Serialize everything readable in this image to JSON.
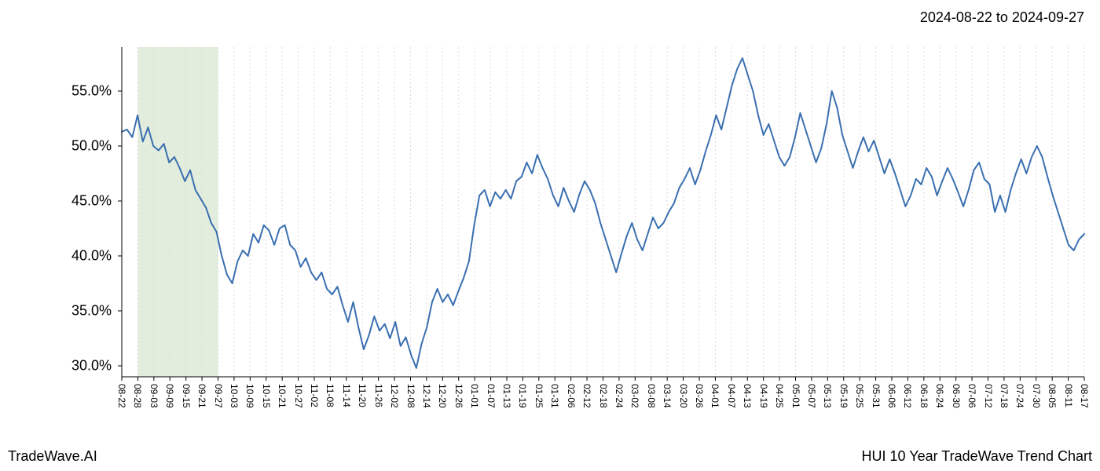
{
  "header": {
    "date_range": "2024-08-22 to 2024-09-27"
  },
  "footer": {
    "left": "TradeWave.AI",
    "right": "HUI 10 Year TradeWave Trend Chart"
  },
  "chart": {
    "type": "line",
    "background_color": "#ffffff",
    "line_color": "#3a6fb0",
    "line_width": 2,
    "highlight_band": {
      "start_index": 1,
      "end_index": 6,
      "fill_color": "#d6e5cf",
      "fill_opacity": 0.7
    },
    "grid": {
      "vertical_color": "#dcdcdc",
      "vertical_dash": "2,3",
      "horizontal_color": "#dcdcdc",
      "horizontal_dash": "none"
    },
    "y_axis": {
      "min": 29,
      "max": 59,
      "ticks": [
        30,
        35,
        40,
        45,
        50,
        55
      ],
      "tick_labels": [
        "30.0%",
        "35.0%",
        "40.0%",
        "45.0%",
        "50.0%",
        "55.0%"
      ],
      "label_fontsize": 18,
      "label_color": "#000000"
    },
    "x_axis": {
      "labels": [
        "08-22",
        "08-28",
        "09-03",
        "09-09",
        "09-15",
        "09-21",
        "09-27",
        "10-03",
        "10-09",
        "10-15",
        "10-21",
        "10-27",
        "11-02",
        "11-08",
        "11-14",
        "11-20",
        "11-26",
        "12-02",
        "12-08",
        "12-14",
        "12-20",
        "12-26",
        "01-01",
        "01-07",
        "01-13",
        "01-19",
        "01-25",
        "01-31",
        "02-06",
        "02-12",
        "02-18",
        "02-24",
        "03-02",
        "03-08",
        "03-14",
        "03-20",
        "03-26",
        "04-01",
        "04-07",
        "04-13",
        "04-19",
        "04-25",
        "05-01",
        "05-07",
        "05-13",
        "05-19",
        "05-25",
        "05-31",
        "06-06",
        "06-12",
        "06-18",
        "06-24",
        "06-30",
        "07-06",
        "07-12",
        "07-18",
        "07-24",
        "07-30",
        "08-05",
        "08-11",
        "08-17"
      ],
      "label_fontsize": 12,
      "label_color": "#000000",
      "label_rotation": 90
    },
    "series": {
      "values": [
        51.3,
        51.5,
        50.8,
        52.8,
        50.4,
        51.7,
        50.0,
        49.6,
        50.2,
        48.5,
        49.0,
        48.0,
        46.8,
        47.8,
        46.0,
        45.2,
        44.4,
        43.0,
        42.2,
        40.0,
        38.3,
        37.5,
        39.5,
        40.5,
        40.0,
        42.0,
        41.2,
        42.8,
        42.3,
        41.0,
        42.5,
        42.8,
        41.0,
        40.5,
        39.0,
        39.8,
        38.5,
        37.8,
        38.5,
        37.0,
        36.5,
        37.2,
        35.5,
        34.0,
        35.8,
        33.5,
        31.5,
        32.8,
        34.5,
        33.2,
        33.8,
        32.5,
        34.0,
        31.8,
        32.6,
        31.0,
        29.8,
        32.0,
        33.5,
        35.8,
        37.0,
        35.8,
        36.5,
        35.5,
        36.8,
        38.0,
        39.5,
        42.8,
        45.5,
        46.0,
        44.5,
        45.8,
        45.2,
        46.0,
        45.2,
        46.8,
        47.2,
        48.5,
        47.5,
        49.2,
        48.0,
        47.0,
        45.5,
        44.5,
        46.2,
        45.0,
        44.0,
        45.6,
        46.8,
        46.0,
        44.8,
        43.0,
        41.5,
        40.0,
        38.5,
        40.2,
        41.8,
        43.0,
        41.5,
        40.5,
        42.0,
        43.5,
        42.5,
        43.0,
        44.0,
        44.8,
        46.2,
        47.0,
        48.0,
        46.5,
        47.8,
        49.5,
        51.0,
        52.8,
        51.5,
        53.5,
        55.5,
        57.0,
        58.0,
        56.5,
        55.0,
        52.8,
        51.0,
        52.0,
        50.5,
        49.0,
        48.2,
        49.0,
        50.8,
        53.0,
        51.5,
        50.0,
        48.5,
        49.8,
        52.0,
        55.0,
        53.5,
        51.0,
        49.5,
        48.0,
        49.5,
        50.8,
        49.5,
        50.5,
        49.0,
        47.5,
        48.8,
        47.5,
        46.0,
        44.5,
        45.5,
        47.0,
        46.5,
        48.0,
        47.2,
        45.5,
        46.8,
        48.0,
        47.0,
        45.8,
        44.5,
        46.0,
        47.8,
        48.5,
        47.0,
        46.5,
        44.0,
        45.5,
        44.0,
        46.0,
        47.5,
        48.8,
        47.5,
        49.0,
        50.0,
        49.0,
        47.2,
        45.5,
        44.0,
        42.5,
        41.0,
        40.5,
        41.5,
        42.0
      ]
    }
  }
}
